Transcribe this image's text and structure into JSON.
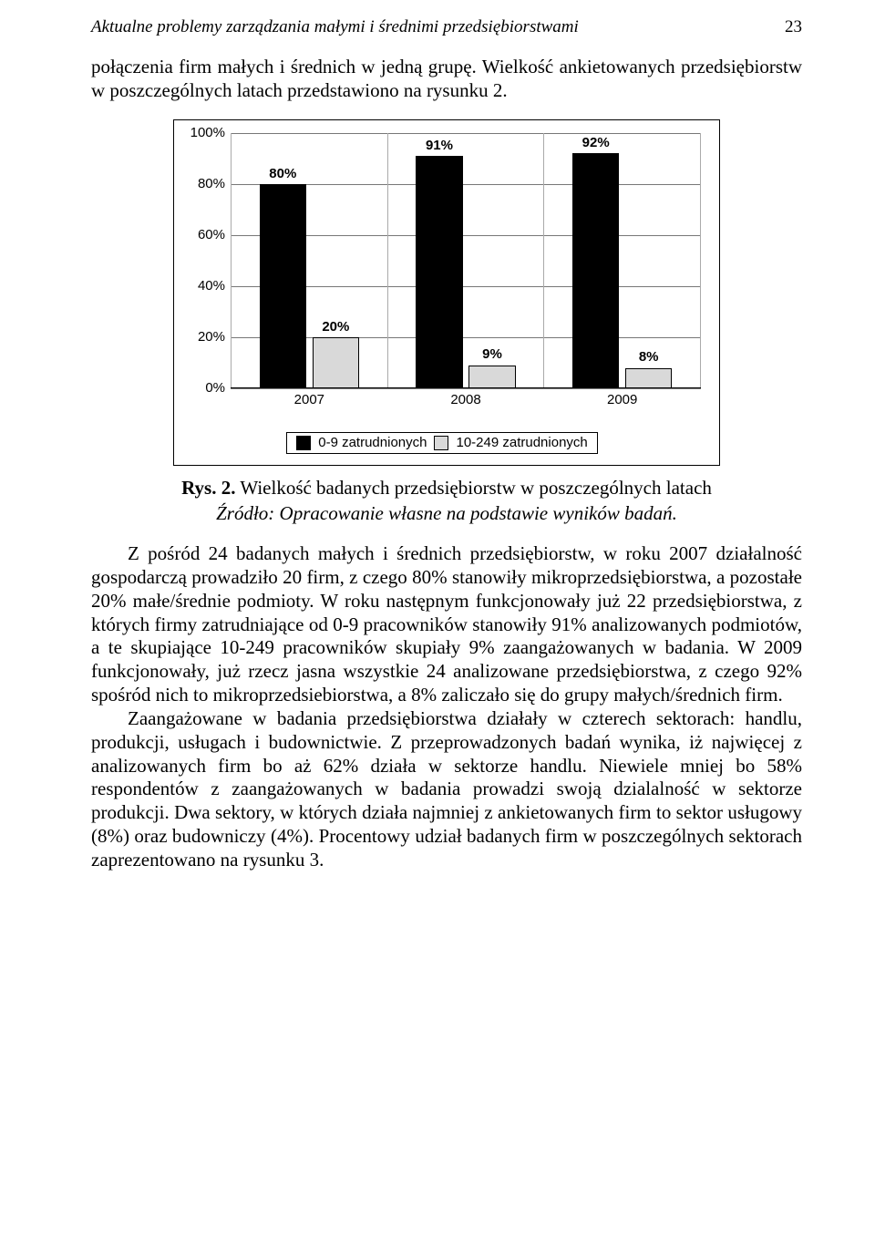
{
  "header": {
    "running_title": "Aktualne problemy zarządzania małymi i średnimi przedsiębiorstwami",
    "page_number": "23"
  },
  "intro_para": "połączenia firm małych i średnich w jedną grupę. Wielkość ankietowanych przedsiębiorstw w poszczególnych latach przedstawiono na rysunku 2.",
  "chart": {
    "type": "bar",
    "y_max": 100,
    "y_ticks": [
      0,
      20,
      40,
      60,
      80,
      100
    ],
    "y_tick_labels": [
      "0%",
      "20%",
      "40%",
      "60%",
      "80%",
      "100%"
    ],
    "categories": [
      "2007",
      "2008",
      "2009"
    ],
    "series": [
      {
        "key": "s0",
        "name": "0-9 zatrudnionych",
        "color": "#000000",
        "values": [
          80,
          91,
          92
        ],
        "value_labels": [
          "80%",
          "91%",
          "92%"
        ]
      },
      {
        "key": "s1",
        "name": "10-249 zatrudnionych",
        "color": "#d9d9d9",
        "values": [
          20,
          9,
          8
        ],
        "value_labels": [
          "20%",
          "9%",
          "8%"
        ]
      }
    ],
    "bar_border": "#000000",
    "grid_color": "#777777",
    "label_fontsize": 15,
    "legend_border": "#000000",
    "background": "#ffffff"
  },
  "caption": {
    "label": "Rys. 2.",
    "text": "Wielkość badanych przedsiębiorstw w poszczególnych latach"
  },
  "source": "Źródło: Opracowanie własne na podstawie wyników badań.",
  "body": [
    "Z pośród 24 badanych małych i średnich przedsiębiorstw, w roku 2007 działalność gospodarczą prowadziło 20 firm, z czego 80% stanowiły mikroprzedsiębiorstwa, a pozostałe 20% małe/średnie podmioty. W roku następnym funkcjonowały już 22 przedsiębiorstwa, z których firmy zatrudniające od 0-9 pracowników stanowiły 91% analizowanych podmiotów, a te skupiające 10-249 pracowników skupiały 9% zaangażowanych w badania. W 2009 funkcjonowały, już rzecz jasna wszystkie 24 analizowane przedsiębiorstwa, z czego 92% spośród nich to mikroprzedsiebiorstwa, a 8% zaliczało się do grupy małych/średnich firm.",
    "Zaangażowane w badania przedsiębiorstwa działały w czterech sektorach: handlu, produkcji, usługach i budownictwie. Z przeprowadzonych badań wynika, iż najwięcej z analizowanych firm bo aż 62% działa w sektorze handlu. Niewiele mniej bo 58% respondentów z zaangażowanych w badania prowadzi swoją dzialalność w sektorze produkcji. Dwa sektory, w których działa najmniej z ankietowanych firm to sektor usługowy (8%) oraz budowniczy (4%). Procentowy udział badanych firm w poszczególnych sektorach zaprezentowano na rysunku 3."
  ]
}
